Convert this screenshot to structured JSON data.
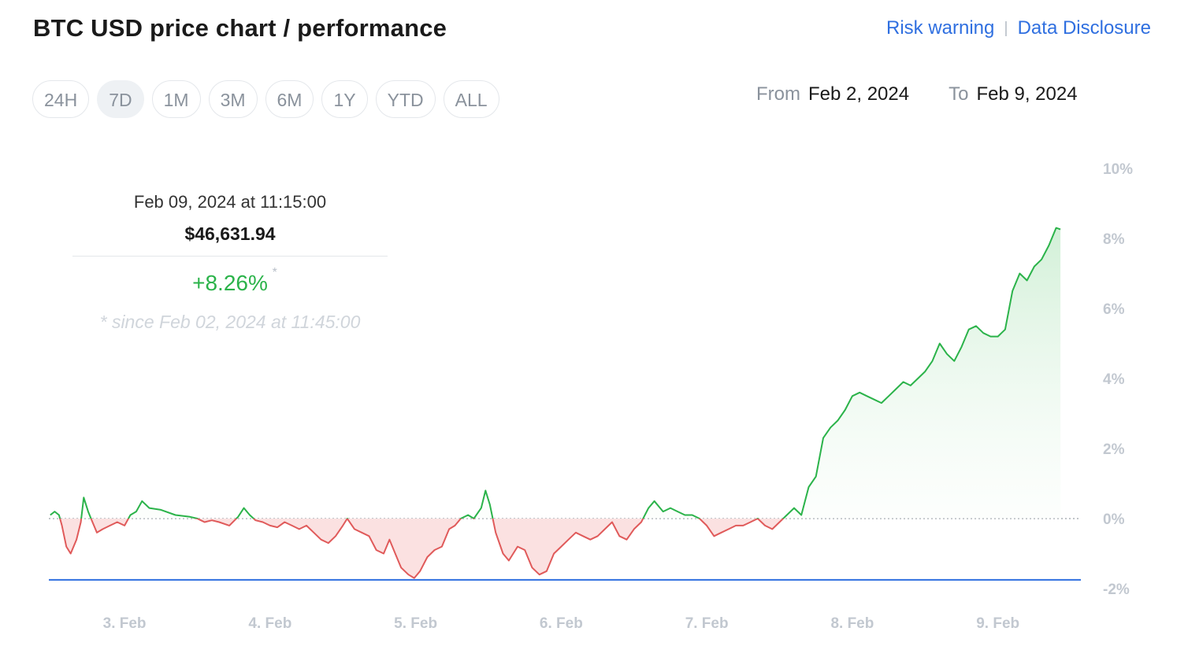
{
  "header": {
    "title": "BTC USD price chart / performance",
    "links": [
      {
        "label": "Risk warning"
      },
      {
        "label": "Data Disclosure"
      }
    ]
  },
  "ranges": [
    {
      "label": "24H",
      "active": false
    },
    {
      "label": "7D",
      "active": true
    },
    {
      "label": "1M",
      "active": false
    },
    {
      "label": "3M",
      "active": false
    },
    {
      "label": "6M",
      "active": false
    },
    {
      "label": "1Y",
      "active": false
    },
    {
      "label": "YTD",
      "active": false
    },
    {
      "label": "ALL",
      "active": false
    }
  ],
  "date_range": {
    "from_label": "From",
    "from_value": "Feb 2, 2024",
    "to_label": "To",
    "to_value": "Feb 9, 2024"
  },
  "tooltip": {
    "timestamp": "Feb 09, 2024 at 11:15:00",
    "price": "$46,631.94",
    "change": "+8.26%",
    "asterisk": "*",
    "since": "* since Feb 02, 2024 at 11:45:00"
  },
  "colors": {
    "positive": "#2bb34a",
    "negative": "#e05a5a",
    "positive_fill": "#d9f2dd",
    "negative_fill": "#fbe1e1",
    "baseline": "#2f6fe0",
    "link": "#2f6fe0"
  },
  "chart_data": {
    "type": "area",
    "title": "",
    "xlabel": "",
    "ylabel": "",
    "ylim": [
      -2,
      10
    ],
    "yticks": [
      10,
      8,
      6,
      4,
      2,
      0,
      -2
    ],
    "ytick_labels": [
      "10%",
      "8%",
      "6%",
      "4%",
      "2%",
      "0%",
      "-2%"
    ],
    "xlim": [
      2.48,
      9.57
    ],
    "xticks": [
      3,
      4,
      5,
      6,
      7,
      8,
      9
    ],
    "xtick_labels": [
      "3. Feb",
      "4. Feb",
      "5. Feb",
      "6. Feb",
      "7. Feb",
      "8. Feb",
      "9. Feb"
    ],
    "reference_lines": [
      {
        "y": 0,
        "style": "dotted"
      },
      {
        "y": -1.75,
        "style": "solid"
      }
    ],
    "series": [
      {
        "points": [
          [
            2.49,
            0.1
          ],
          [
            2.52,
            0.2
          ],
          [
            2.55,
            0.1
          ],
          [
            2.57,
            -0.2
          ],
          [
            2.6,
            -0.8
          ],
          [
            2.63,
            -1.0
          ],
          [
            2.67,
            -0.6
          ],
          [
            2.7,
            -0.1
          ],
          [
            2.72,
            0.6
          ],
          [
            2.75,
            0.2
          ],
          [
            2.78,
            -0.1
          ],
          [
            2.81,
            -0.4
          ],
          [
            2.85,
            -0.3
          ],
          [
            2.9,
            -0.2
          ],
          [
            2.95,
            -0.1
          ],
          [
            3.0,
            -0.2
          ],
          [
            3.04,
            0.1
          ],
          [
            3.08,
            0.2
          ],
          [
            3.12,
            0.5
          ],
          [
            3.17,
            0.3
          ],
          [
            3.25,
            0.25
          ],
          [
            3.35,
            0.1
          ],
          [
            3.45,
            0.05
          ],
          [
            3.5,
            0.0
          ],
          [
            3.55,
            -0.1
          ],
          [
            3.6,
            -0.05
          ],
          [
            3.65,
            -0.1
          ],
          [
            3.72,
            -0.2
          ],
          [
            3.78,
            0.05
          ],
          [
            3.82,
            0.3
          ],
          [
            3.86,
            0.1
          ],
          [
            3.9,
            -0.05
          ],
          [
            3.95,
            -0.1
          ],
          [
            4.0,
            -0.2
          ],
          [
            4.05,
            -0.25
          ],
          [
            4.1,
            -0.1
          ],
          [
            4.15,
            -0.2
          ],
          [
            4.2,
            -0.3
          ],
          [
            4.25,
            -0.2
          ],
          [
            4.3,
            -0.4
          ],
          [
            4.35,
            -0.6
          ],
          [
            4.4,
            -0.7
          ],
          [
            4.45,
            -0.5
          ],
          [
            4.5,
            -0.2
          ],
          [
            4.53,
            0.0
          ],
          [
            4.58,
            -0.3
          ],
          [
            4.63,
            -0.4
          ],
          [
            4.68,
            -0.5
          ],
          [
            4.73,
            -0.9
          ],
          [
            4.78,
            -1.0
          ],
          [
            4.82,
            -0.6
          ],
          [
            4.86,
            -1.0
          ],
          [
            4.9,
            -1.4
          ],
          [
            4.95,
            -1.6
          ],
          [
            4.99,
            -1.7
          ],
          [
            5.03,
            -1.5
          ],
          [
            5.08,
            -1.1
          ],
          [
            5.13,
            -0.9
          ],
          [
            5.18,
            -0.8
          ],
          [
            5.23,
            -0.3
          ],
          [
            5.27,
            -0.2
          ],
          [
            5.31,
            0.0
          ],
          [
            5.36,
            0.1
          ],
          [
            5.4,
            0.0
          ],
          [
            5.45,
            0.3
          ],
          [
            5.48,
            0.8
          ],
          [
            5.51,
            0.4
          ],
          [
            5.55,
            -0.4
          ],
          [
            5.6,
            -1.0
          ],
          [
            5.64,
            -1.2
          ],
          [
            5.7,
            -0.8
          ],
          [
            5.75,
            -0.9
          ],
          [
            5.8,
            -1.4
          ],
          [
            5.85,
            -1.6
          ],
          [
            5.9,
            -1.5
          ],
          [
            5.95,
            -1.0
          ],
          [
            6.0,
            -0.8
          ],
          [
            6.05,
            -0.6
          ],
          [
            6.1,
            -0.4
          ],
          [
            6.15,
            -0.5
          ],
          [
            6.2,
            -0.6
          ],
          [
            6.25,
            -0.5
          ],
          [
            6.3,
            -0.3
          ],
          [
            6.35,
            -0.1
          ],
          [
            6.4,
            -0.5
          ],
          [
            6.45,
            -0.6
          ],
          [
            6.5,
            -0.3
          ],
          [
            6.55,
            -0.1
          ],
          [
            6.6,
            0.3
          ],
          [
            6.64,
            0.5
          ],
          [
            6.7,
            0.2
          ],
          [
            6.75,
            0.3
          ],
          [
            6.8,
            0.2
          ],
          [
            6.85,
            0.1
          ],
          [
            6.9,
            0.1
          ],
          [
            6.95,
            0.0
          ],
          [
            7.0,
            -0.2
          ],
          [
            7.05,
            -0.5
          ],
          [
            7.1,
            -0.4
          ],
          [
            7.15,
            -0.3
          ],
          [
            7.2,
            -0.2
          ],
          [
            7.25,
            -0.2
          ],
          [
            7.3,
            -0.1
          ],
          [
            7.35,
            0.0
          ],
          [
            7.4,
            -0.2
          ],
          [
            7.45,
            -0.3
          ],
          [
            7.5,
            -0.1
          ],
          [
            7.55,
            0.1
          ],
          [
            7.6,
            0.3
          ],
          [
            7.65,
            0.1
          ],
          [
            7.7,
            0.9
          ],
          [
            7.75,
            1.2
          ],
          [
            7.8,
            2.3
          ],
          [
            7.85,
            2.6
          ],
          [
            7.9,
            2.8
          ],
          [
            7.95,
            3.1
          ],
          [
            8.0,
            3.5
          ],
          [
            8.05,
            3.6
          ],
          [
            8.1,
            3.5
          ],
          [
            8.15,
            3.4
          ],
          [
            8.2,
            3.3
          ],
          [
            8.25,
            3.5
          ],
          [
            8.3,
            3.7
          ],
          [
            8.35,
            3.9
          ],
          [
            8.4,
            3.8
          ],
          [
            8.45,
            4.0
          ],
          [
            8.5,
            4.2
          ],
          [
            8.55,
            4.5
          ],
          [
            8.6,
            5.0
          ],
          [
            8.65,
            4.7
          ],
          [
            8.7,
            4.5
          ],
          [
            8.75,
            4.9
          ],
          [
            8.8,
            5.4
          ],
          [
            8.85,
            5.5
          ],
          [
            8.9,
            5.3
          ],
          [
            8.95,
            5.2
          ],
          [
            9.0,
            5.2
          ],
          [
            9.05,
            5.4
          ],
          [
            9.1,
            6.5
          ],
          [
            9.15,
            7.0
          ],
          [
            9.2,
            6.8
          ],
          [
            9.25,
            7.2
          ],
          [
            9.3,
            7.4
          ],
          [
            9.35,
            7.8
          ],
          [
            9.4,
            8.3
          ],
          [
            9.43,
            8.26
          ]
        ]
      }
    ]
  }
}
